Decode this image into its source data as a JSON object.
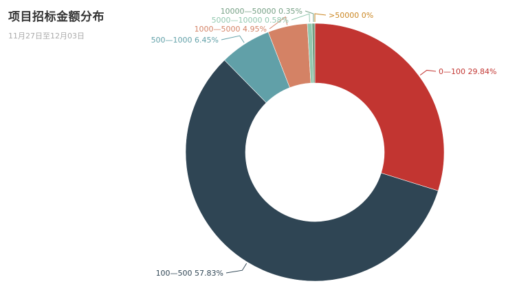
{
  "chart_data": {
    "type": "pie",
    "title": "项目招标金额分布",
    "subtitle": "11月27日至12月03日",
    "categories": [
      "0—100",
      "100—500",
      "500—1000",
      "1000—5000",
      "5000—10000",
      "10000—50000",
      ">50000"
    ],
    "values": [
      29.84,
      57.83,
      6.45,
      4.95,
      0.58,
      0.35,
      0
    ],
    "labels": [
      "0—100 29.84%",
      "100—500 57.83%",
      "500—1000 6.45%",
      "1000—5000 4.95%",
      "5000—10000 0.58%",
      "10000—50000 0.35%",
      ">50000 0%"
    ],
    "colors": [
      "#c23531",
      "#2f4554",
      "#61a0a8",
      "#d48265",
      "#91c7ae",
      "#749f83",
      "#ca8622"
    ],
    "donut": true,
    "legend": "none"
  }
}
